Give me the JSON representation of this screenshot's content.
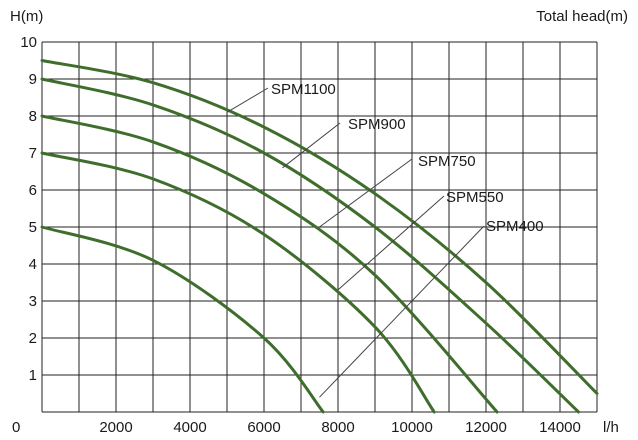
{
  "chart_data": {
    "type": "line",
    "ylabel": "H(m)",
    "ylabel_right": "Total head(m)",
    "xunit": "l/h",
    "xlim": [
      0,
      15000
    ],
    "ylim": [
      0,
      10
    ],
    "x_ticks": [
      0,
      2000,
      4000,
      6000,
      8000,
      10000,
      12000,
      14000
    ],
    "y_ticks": [
      0,
      1,
      2,
      3,
      4,
      5,
      6,
      7,
      8,
      9,
      10
    ],
    "grid": true,
    "line_color": "#3f6e2c",
    "series": [
      {
        "name": "SPM1100",
        "x": [
          0,
          3000,
          6000,
          9000,
          12000,
          15000
        ],
        "y": [
          9.5,
          8.9,
          7.7,
          5.9,
          3.5,
          0.5
        ],
        "label_point": [
          5000,
          8.1
        ]
      },
      {
        "name": "SPM900",
        "x": [
          0,
          3000,
          6000,
          9000,
          12000,
          14500
        ],
        "y": [
          9.0,
          8.3,
          7.0,
          5.0,
          2.4,
          0.0
        ],
        "label_point": [
          6500,
          6.6
        ]
      },
      {
        "name": "SPM750",
        "x": [
          0,
          3000,
          6000,
          9000,
          12300
        ],
        "y": [
          8.0,
          7.3,
          5.9,
          3.7,
          0.0
        ],
        "label_point": [
          7500,
          5.0
        ]
      },
      {
        "name": "SPM550",
        "x": [
          0,
          3000,
          6000,
          9000,
          10600
        ],
        "y": [
          7.0,
          6.3,
          4.8,
          2.3,
          0.0
        ],
        "label_point": [
          8000,
          3.3
        ]
      },
      {
        "name": "SPM400",
        "x": [
          0,
          3000,
          6000,
          7600
        ],
        "y": [
          5.0,
          4.1,
          2.0,
          0.0
        ],
        "label_point": [
          7500,
          0.4
        ]
      }
    ]
  }
}
